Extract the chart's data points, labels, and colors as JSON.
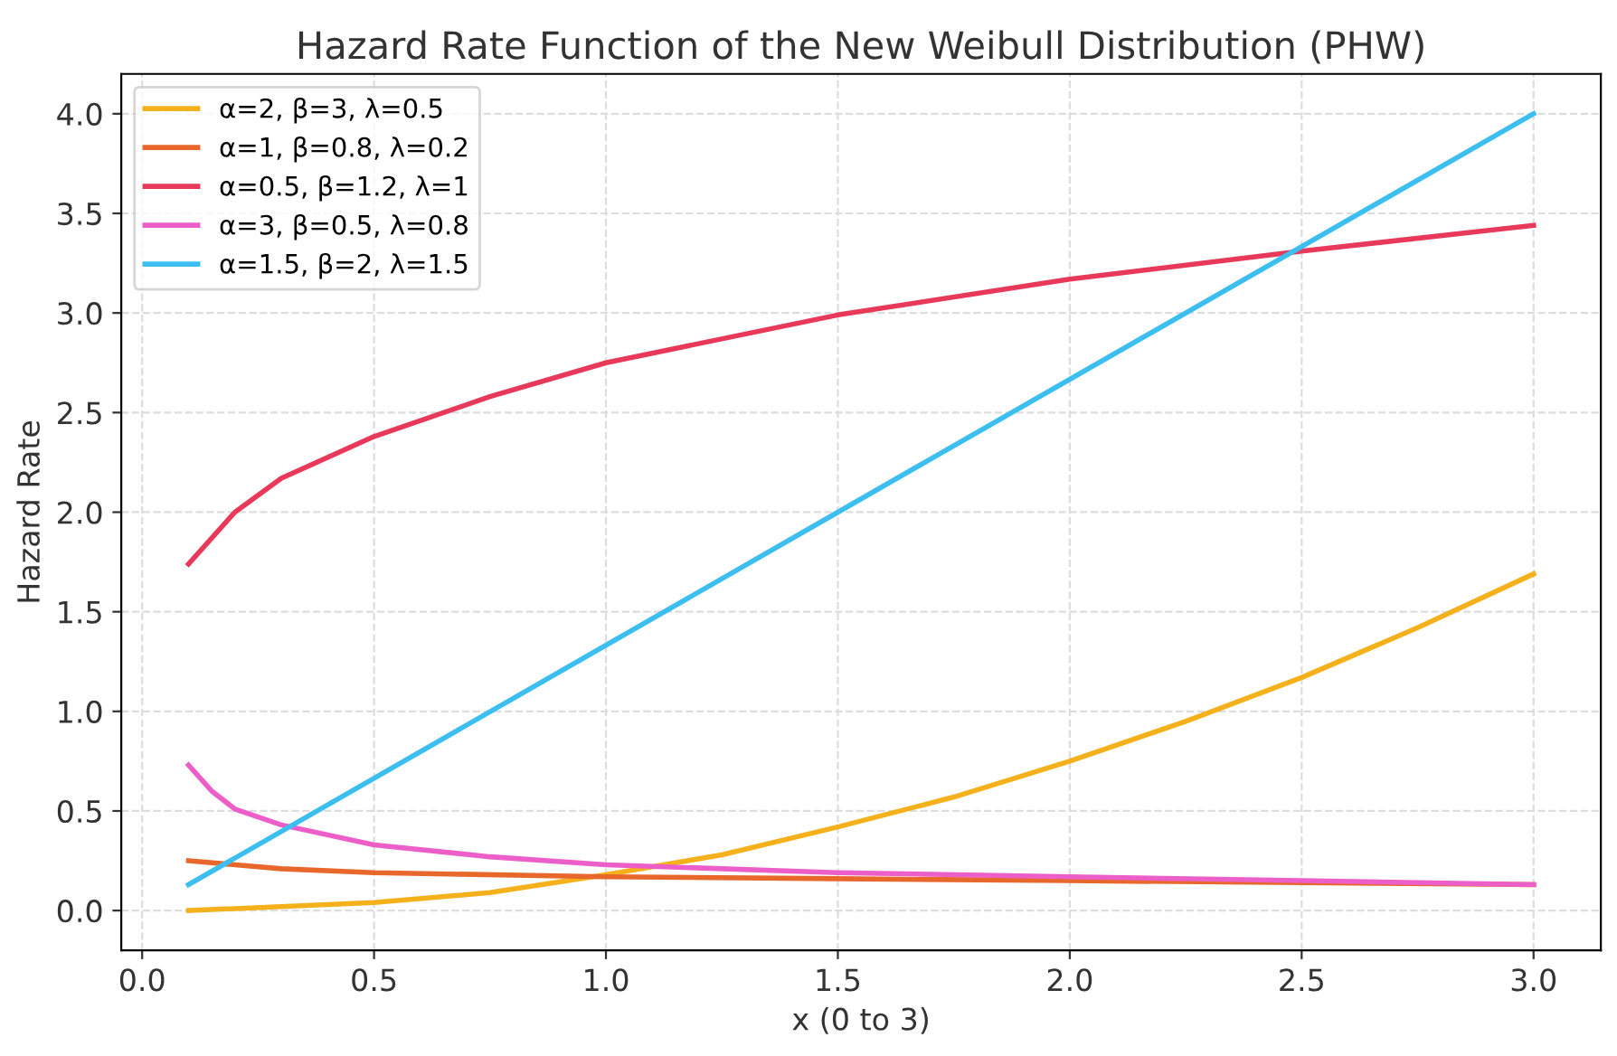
{
  "chart_data": {
    "type": "line",
    "title": "Hazard Rate Function of the New Weibull Distribution (PHW)",
    "xlabel": "x (0 to 3)",
    "ylabel": "Hazard Rate",
    "series": [
      {
        "name": "α=2, β=3, λ=0.5",
        "color": "#f5b11c",
        "x": [
          0.1,
          0.5,
          0.75,
          1.0,
          1.25,
          1.5,
          1.75,
          2.0,
          2.25,
          2.5,
          2.75,
          3.0
        ],
        "values": [
          0.0,
          0.04,
          0.09,
          0.18,
          0.28,
          0.42,
          0.57,
          0.75,
          0.95,
          1.17,
          1.42,
          1.69
        ]
      },
      {
        "name": "α=1, β=0.8, λ=0.2",
        "color": "#e8672b",
        "x": [
          0.1,
          0.3,
          0.5,
          1.0,
          1.5,
          2.0,
          2.5,
          3.0
        ],
        "values": [
          0.25,
          0.21,
          0.19,
          0.17,
          0.16,
          0.15,
          0.14,
          0.13
        ]
      },
      {
        "name": "α=0.5, β=1.2, λ=1",
        "color": "#e8395a",
        "x": [
          0.1,
          0.2,
          0.3,
          0.5,
          0.75,
          1.0,
          1.5,
          2.0,
          2.5,
          3.0
        ],
        "values": [
          1.74,
          2.0,
          2.17,
          2.38,
          2.58,
          2.75,
          2.99,
          3.17,
          3.31,
          3.44
        ]
      },
      {
        "name": "α=3, β=0.5, λ=0.8",
        "color": "#ec5fc8",
        "x": [
          0.1,
          0.15,
          0.2,
          0.3,
          0.5,
          0.75,
          1.0,
          1.5,
          2.0,
          2.5,
          3.0
        ],
        "values": [
          0.73,
          0.6,
          0.51,
          0.43,
          0.33,
          0.27,
          0.23,
          0.19,
          0.17,
          0.15,
          0.13
        ]
      },
      {
        "name": "α=1.5, β=2, λ=1.5",
        "color": "#3cbff0",
        "x": [
          0.1,
          1.5,
          3.0
        ],
        "values": [
          0.13,
          2.0,
          4.0
        ]
      }
    ],
    "xlim": [
      -0.045,
      3.145
    ],
    "ylim": [
      -0.2,
      4.2
    ],
    "xticks": [
      {
        "value": 0,
        "label": "0.0"
      },
      {
        "value": 0.5,
        "label": "0.5"
      },
      {
        "value": 1,
        "label": "1.0"
      },
      {
        "value": 1.5,
        "label": "1.5"
      },
      {
        "value": 2,
        "label": "2.0"
      },
      {
        "value": 2.5,
        "label": "2.5"
      },
      {
        "value": 3,
        "label": "3.0"
      }
    ],
    "yticks": [
      {
        "value": 0,
        "label": "0.0"
      },
      {
        "value": 0.5,
        "label": "0.5"
      },
      {
        "value": 1,
        "label": "1.0"
      },
      {
        "value": 1.5,
        "label": "1.5"
      },
      {
        "value": 2,
        "label": "2.0"
      },
      {
        "value": 2.5,
        "label": "2.5"
      },
      {
        "value": 3,
        "label": "3.0"
      },
      {
        "value": 3.5,
        "label": "3.5"
      },
      {
        "value": 4,
        "label": "4.0"
      }
    ],
    "grid": true,
    "legend": "top left",
    "marker": "none",
    "line_style": "solid"
  }
}
